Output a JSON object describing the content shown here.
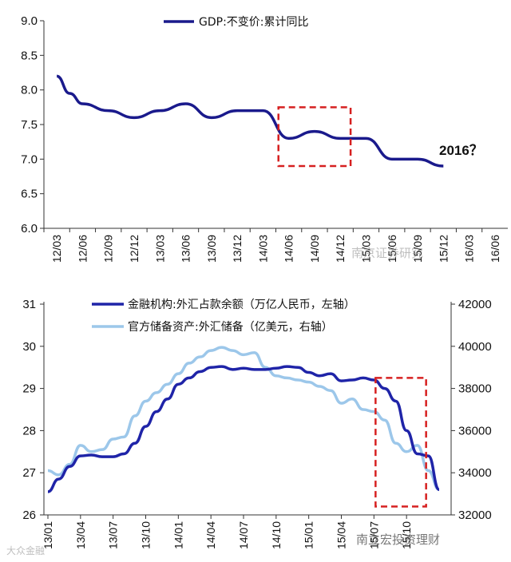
{
  "chart_data": [
    {
      "type": "line",
      "title": "",
      "xlabel": "",
      "ylabel": "",
      "ylim": [
        6.0,
        9.0
      ],
      "yticks": [
        "6.0",
        "6.5",
        "7.0",
        "7.5",
        "8.0",
        "8.5",
        "9.0"
      ],
      "categories": [
        "12/03",
        "12/06",
        "12/09",
        "12/12",
        "13/03",
        "13/06",
        "13/09",
        "13/12",
        "14/03",
        "14/06",
        "14/09",
        "14/12",
        "15/03",
        "15/06",
        "15/09",
        "15/12",
        "16/03",
        "16/06"
      ],
      "series": [
        {
          "name": "GDP:不变价:累计同比",
          "color": "#1a1a8c",
          "x": [
            0,
            0.5,
            1,
            2,
            3,
            4,
            5,
            6,
            7,
            8,
            9,
            10,
            11,
            12,
            13,
            14,
            15
          ],
          "values": [
            8.2,
            7.95,
            7.8,
            7.7,
            7.6,
            7.7,
            7.8,
            7.6,
            7.7,
            7.7,
            7.3,
            7.4,
            7.3,
            7.3,
            7.0,
            7.0,
            6.9
          ]
        }
      ],
      "annotation": "2016？",
      "highlight_box": {
        "x_from": 8.6,
        "x_to": 11.4,
        "y_from": 6.9,
        "y_to": 7.75
      }
    },
    {
      "type": "line",
      "title": "",
      "xlabel": "",
      "ylim_left": [
        26,
        31
      ],
      "ylim_right": [
        32000,
        42000
      ],
      "yticks_left": [
        "26",
        "27",
        "28",
        "29",
        "30",
        "31"
      ],
      "yticks_right": [
        "32000",
        "34000",
        "36000",
        "38000",
        "40000",
        "42000"
      ],
      "categories": [
        "13/01",
        "13/04",
        "13/07",
        "13/10",
        "14/01",
        "14/04",
        "14/07",
        "14/10",
        "15/01",
        "15/04",
        "15/07",
        "15/10"
      ],
      "series": [
        {
          "name": "金融机构:外汇占款余额（万亿人民币，左轴）",
          "axis": "left",
          "color": "#1f24a8",
          "x": [
            0,
            0.33,
            0.67,
            1,
            1.33,
            1.67,
            2,
            2.33,
            2.67,
            3,
            3.33,
            3.67,
            4,
            4.33,
            4.67,
            5,
            5.33,
            5.67,
            6,
            6.33,
            6.67,
            7,
            7.33,
            7.67,
            8,
            8.33,
            8.67,
            9,
            9.33,
            9.67,
            10,
            10.33,
            10.67,
            11,
            11.33,
            11.67,
            12
          ],
          "values": [
            26.55,
            26.85,
            27.15,
            27.4,
            27.42,
            27.38,
            27.38,
            27.45,
            27.7,
            28.1,
            28.45,
            28.75,
            29.1,
            29.25,
            29.4,
            29.5,
            29.52,
            29.45,
            29.48,
            29.45,
            29.45,
            29.48,
            29.52,
            29.5,
            29.38,
            29.3,
            29.35,
            29.18,
            29.2,
            29.25,
            29.2,
            29.0,
            28.7,
            28.0,
            27.45,
            27.4,
            26.6
          ]
        },
        {
          "name": "官方储备资产:外汇储备（亿美元，右轴）",
          "axis": "right",
          "color": "#9cc7ea",
          "x": [
            0,
            0.33,
            0.67,
            1,
            1.33,
            1.67,
            2,
            2.33,
            2.67,
            3,
            3.33,
            3.67,
            4,
            4.33,
            4.67,
            5,
            5.33,
            5.67,
            6,
            6.33,
            6.67,
            7,
            7.33,
            7.67,
            8,
            8.33,
            8.67,
            9,
            9.33,
            9.67,
            10,
            10.33,
            10.67,
            11,
            11.33,
            11.67,
            12
          ],
          "values": [
            34100,
            33900,
            34400,
            35300,
            35000,
            35100,
            35600,
            35700,
            36700,
            37400,
            37800,
            38200,
            38700,
            39200,
            39500,
            39800,
            39950,
            39800,
            39600,
            39700,
            39000,
            38600,
            38500,
            38400,
            38300,
            38100,
            37900,
            37300,
            37500,
            37000,
            36900,
            36500,
            35400,
            35000,
            35300,
            34100,
            33200
          ]
        }
      ],
      "highlight_box": {
        "x_from": 10.05,
        "x_to": 11.6,
        "y_from_left": 26.2,
        "y_to_left": 29.25
      }
    }
  ],
  "watermarks": {
    "top": "南京证券研究",
    "bottom": "南立宏投资理财",
    "bottom_left": "大众金融"
  }
}
